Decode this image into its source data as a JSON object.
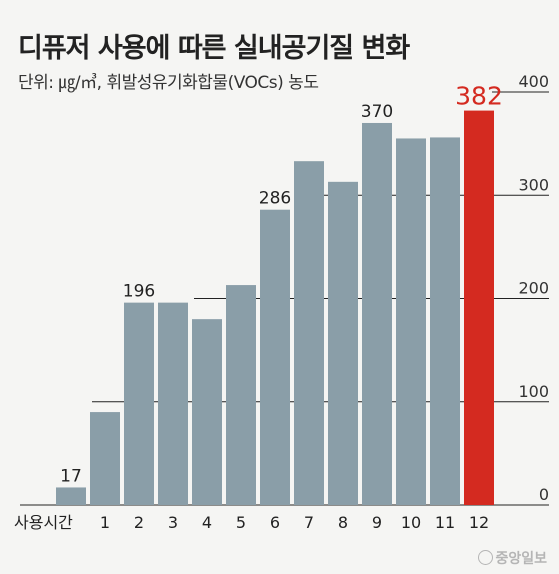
{
  "chart_data": {
    "type": "bar",
    "title": "디퓨저 사용에 따른 실내공기질 변화",
    "subtitle": "단위: ㎍/㎥, 휘발성유기화합물(VOCs) 농도",
    "xlabel": "사용시간",
    "categories": [
      "1",
      "2",
      "3",
      "4",
      "5",
      "6",
      "7",
      "8",
      "9",
      "10",
      "11",
      "12"
    ],
    "values": [
      17,
      90,
      196,
      196,
      180,
      213,
      286,
      333,
      313,
      370,
      355,
      356,
      382
    ],
    "x": [
      "",
      "1",
      "2",
      "3",
      "4",
      "5",
      "6",
      "7",
      "8",
      "9",
      "10",
      "11",
      "12"
    ],
    "data_labels": [
      {
        "index": 0,
        "text": "17"
      },
      {
        "index": 2,
        "text": "196"
      },
      {
        "index": 6,
        "text": "286"
      },
      {
        "index": 9,
        "text": "370"
      },
      {
        "index": 12,
        "text": "382"
      }
    ],
    "highlight_index": 12,
    "yticks": [
      "0",
      "100",
      "200",
      "300",
      "400"
    ],
    "ylim": [
      0,
      400
    ],
    "grid": true,
    "colors": {
      "bar": "#8a9ea8",
      "highlight": "#d42a20",
      "grid": "#222222"
    }
  },
  "credit": {
    "text": "중앙일보",
    "icon": "joongang-logo-icon"
  }
}
